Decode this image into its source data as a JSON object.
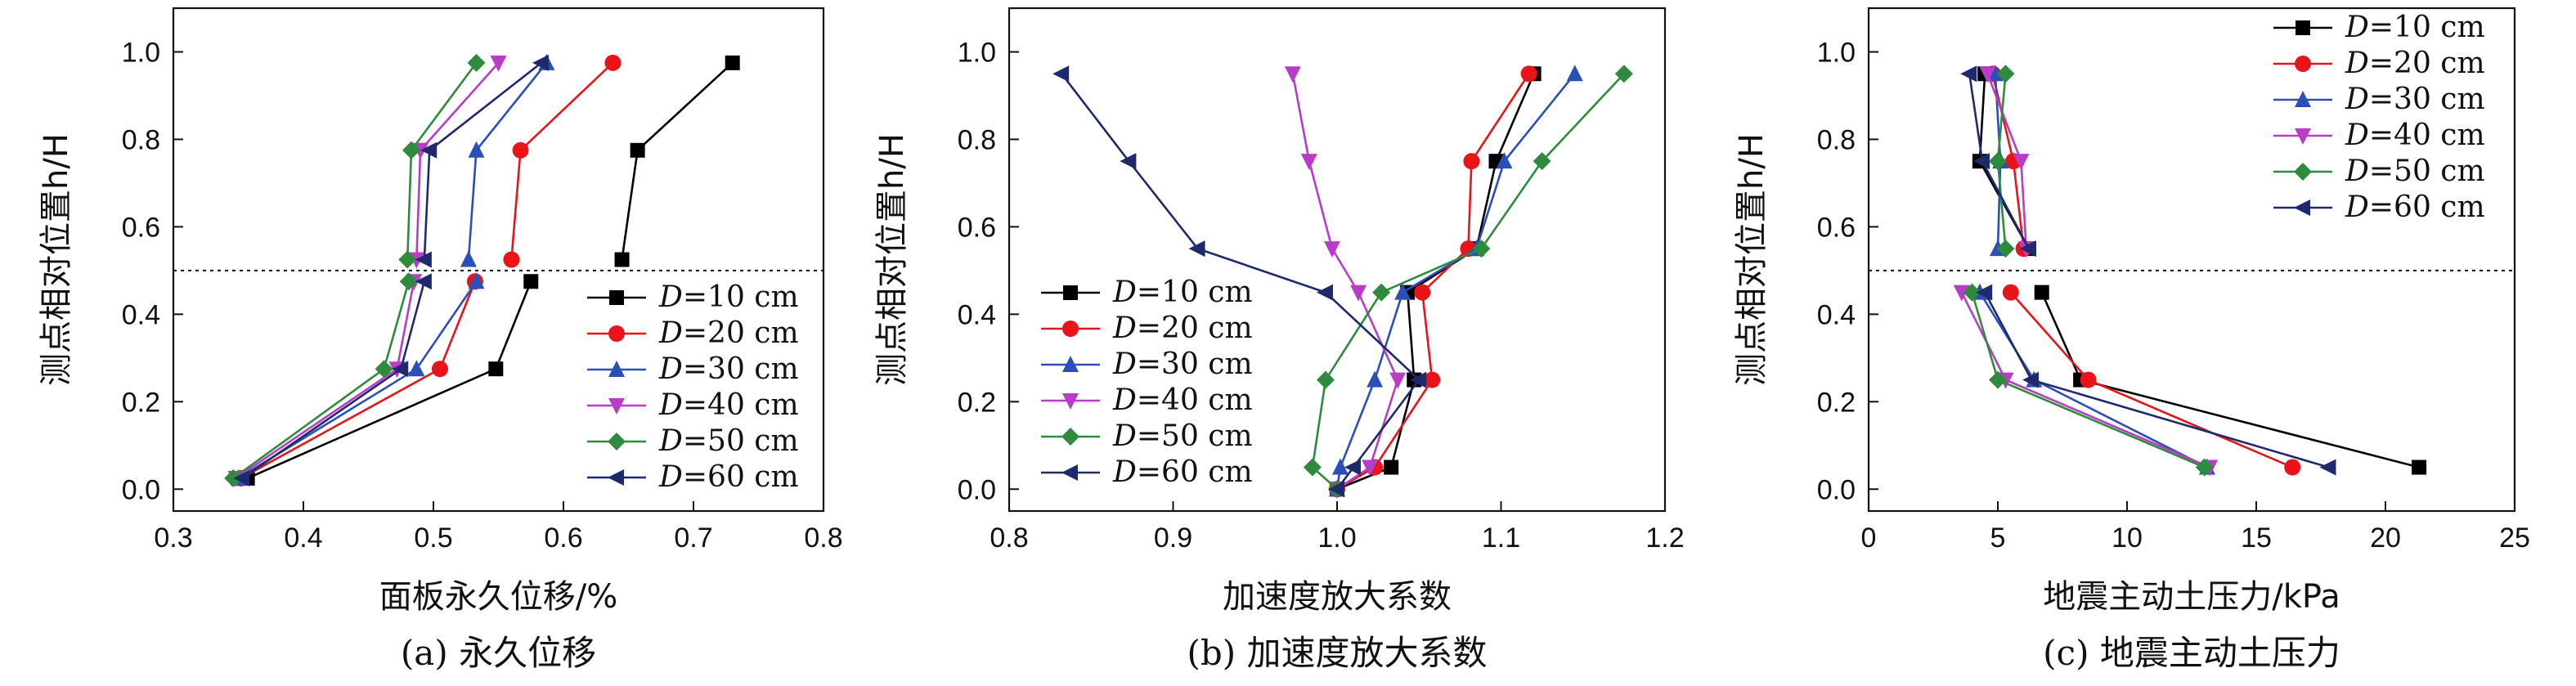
{
  "series_meta": [
    {
      "name": "D=10 cm",
      "color": "#000000",
      "marker": "square"
    },
    {
      "name": "D=20 cm",
      "color": "#e8141a",
      "marker": "circle"
    },
    {
      "name": "D=30 cm",
      "color": "#2a4fb8",
      "marker": "triangle-up"
    },
    {
      "name": "D=40 cm",
      "color": "#b83cc8",
      "marker": "triangle-down"
    },
    {
      "name": "D=50 cm",
      "color": "#2e8b3e",
      "marker": "diamond"
    },
    {
      "name": "D=60 cm",
      "color": "#1f2a6e",
      "marker": "triangle-left"
    }
  ],
  "chart_data": [
    {
      "type": "line",
      "caption": "(a) 永久位移",
      "xlabel": "面板永久位移/%",
      "ylabel": "测点相对位置h/H",
      "xlim": [
        0.3,
        0.8
      ],
      "ylim": [
        -0.05,
        1.1
      ],
      "xticks": [
        "0.3",
        "0.4",
        "0.5",
        "0.6",
        "0.7",
        "0.8"
      ],
      "yticks": [
        "0.0",
        "0.2",
        "0.4",
        "0.6",
        "0.8",
        "1.0"
      ],
      "reference_line_y": 0.5,
      "legend_position": "lower-right",
      "series": [
        {
          "name": "D=10 cm",
          "lower": [
            [
              0.357,
              0.025
            ],
            [
              0.548,
              0.275
            ],
            [
              0.575,
              0.475
            ]
          ],
          "upper": [
            [
              0.645,
              0.525
            ],
            [
              0.657,
              0.775
            ],
            [
              0.73,
              0.975
            ]
          ]
        },
        {
          "name": "D=20 cm",
          "lower": [
            [
              0.352,
              0.025
            ],
            [
              0.505,
              0.275
            ],
            [
              0.532,
              0.475
            ]
          ],
          "upper": [
            [
              0.56,
              0.525
            ],
            [
              0.567,
              0.775
            ],
            [
              0.638,
              0.975
            ]
          ]
        },
        {
          "name": "D=30 cm",
          "lower": [
            [
              0.35,
              0.025
            ],
            [
              0.487,
              0.275
            ],
            [
              0.533,
              0.475
            ]
          ],
          "upper": [
            [
              0.527,
              0.525
            ],
            [
              0.533,
              0.775
            ],
            [
              0.587,
              0.975
            ]
          ]
        },
        {
          "name": "D=40 cm",
          "lower": [
            [
              0.348,
              0.025
            ],
            [
              0.472,
              0.275
            ],
            [
              0.485,
              0.475
            ]
          ],
          "upper": [
            [
              0.487,
              0.525
            ],
            [
              0.49,
              0.775
            ],
            [
              0.55,
              0.975
            ]
          ]
        },
        {
          "name": "D=50 cm",
          "lower": [
            [
              0.346,
              0.025
            ],
            [
              0.462,
              0.275
            ],
            [
              0.481,
              0.475
            ]
          ],
          "upper": [
            [
              0.48,
              0.525
            ],
            [
              0.483,
              0.775
            ],
            [
              0.533,
              0.975
            ]
          ]
        },
        {
          "name": "D=60 cm",
          "lower": [
            [
              0.353,
              0.025
            ],
            [
              0.475,
              0.275
            ],
            [
              0.493,
              0.475
            ]
          ],
          "upper": [
            [
              0.493,
              0.525
            ],
            [
              0.497,
              0.775
            ],
            [
              0.583,
              0.975
            ]
          ]
        }
      ]
    },
    {
      "type": "line",
      "caption": "(b) 加速度放大系数",
      "xlabel": "加速度放大系数",
      "ylabel": "测点相对位置h/H",
      "xlim": [
        0.8,
        1.2
      ],
      "ylim": [
        -0.05,
        1.1
      ],
      "xticks": [
        "0.8",
        "0.9",
        "1.0",
        "1.1",
        "1.2"
      ],
      "yticks": [
        "0.0",
        "0.2",
        "0.4",
        "0.6",
        "0.8",
        "1.0"
      ],
      "legend_position": "lower-left",
      "series": [
        {
          "name": "D=10 cm",
          "points": [
            [
              1.0,
              0.0
            ],
            [
              1.033,
              0.05
            ],
            [
              1.047,
              0.25
            ],
            [
              1.043,
              0.45
            ],
            [
              1.085,
              0.55
            ],
            [
              1.097,
              0.75
            ],
            [
              1.12,
              0.95
            ]
          ]
        },
        {
          "name": "D=20 cm",
          "points": [
            [
              1.0,
              0.0
            ],
            [
              1.023,
              0.05
            ],
            [
              1.058,
              0.25
            ],
            [
              1.052,
              0.45
            ],
            [
              1.08,
              0.55
            ],
            [
              1.082,
              0.75
            ],
            [
              1.117,
              0.95
            ]
          ]
        },
        {
          "name": "D=30 cm",
          "points": [
            [
              1.0,
              0.0
            ],
            [
              1.002,
              0.05
            ],
            [
              1.023,
              0.25
            ],
            [
              1.04,
              0.45
            ],
            [
              1.085,
              0.55
            ],
            [
              1.102,
              0.75
            ],
            [
              1.145,
              0.95
            ]
          ]
        },
        {
          "name": "D=40 cm",
          "points": [
            [
              1.0,
              0.0
            ],
            [
              1.02,
              0.05
            ],
            [
              1.037,
              0.25
            ],
            [
              1.013,
              0.45
            ],
            [
              0.997,
              0.55
            ],
            [
              0.983,
              0.75
            ],
            [
              0.973,
              0.95
            ]
          ]
        },
        {
          "name": "D=50 cm",
          "points": [
            [
              1.0,
              0.0
            ],
            [
              0.985,
              0.05
            ],
            [
              0.993,
              0.25
            ],
            [
              1.027,
              0.45
            ],
            [
              1.088,
              0.55
            ],
            [
              1.125,
              0.75
            ],
            [
              1.175,
              0.95
            ]
          ]
        },
        {
          "name": "D=60 cm",
          "points": [
            [
              1.0,
              0.0
            ],
            [
              1.01,
              0.05
            ],
            [
              1.05,
              0.25
            ],
            [
              0.993,
              0.45
            ],
            [
              0.915,
              0.55
            ],
            [
              0.873,
              0.75
            ],
            [
              0.832,
              0.95
            ]
          ]
        }
      ]
    },
    {
      "type": "line",
      "caption": "(c) 地震主动土压力",
      "xlabel": "地震主动土压力/kPa",
      "ylabel": "测点相对位置h/H",
      "xlim": [
        0,
        25
      ],
      "ylim": [
        -0.05,
        1.1
      ],
      "xticks": [
        "0",
        "5",
        "10",
        "15",
        "20",
        "25"
      ],
      "yticks": [
        "0.0",
        "0.2",
        "0.4",
        "0.6",
        "0.8",
        "1.0"
      ],
      "reference_line_y": 0.5,
      "legend_position": "top-right",
      "series": [
        {
          "name": "D=10 cm",
          "lower": [
            [
              21.3,
              0.05
            ],
            [
              8.2,
              0.25
            ],
            [
              6.7,
              0.45
            ]
          ],
          "upper": [
            [
              6.2,
              0.55
            ],
            [
              4.3,
              0.75
            ],
            [
              4.5,
              0.95
            ]
          ]
        },
        {
          "name": "D=20 cm",
          "lower": [
            [
              16.4,
              0.05
            ],
            [
              8.5,
              0.25
            ],
            [
              5.5,
              0.45
            ]
          ],
          "upper": [
            [
              6.0,
              0.55
            ],
            [
              5.6,
              0.75
            ],
            [
              4.8,
              0.95
            ]
          ]
        },
        {
          "name": "D=30 cm",
          "lower": [
            [
              13.1,
              0.05
            ],
            [
              6.4,
              0.25
            ],
            [
              4.3,
              0.45
            ]
          ],
          "upper": [
            [
              5.0,
              0.55
            ],
            [
              5.1,
              0.75
            ],
            [
              4.9,
              0.95
            ]
          ]
        },
        {
          "name": "D=40 cm",
          "lower": [
            [
              13.2,
              0.05
            ],
            [
              5.3,
              0.25
            ],
            [
              3.6,
              0.45
            ]
          ],
          "upper": [
            [
              6.1,
              0.55
            ],
            [
              5.9,
              0.75
            ],
            [
              4.6,
              0.95
            ]
          ]
        },
        {
          "name": "D=50 cm",
          "lower": [
            [
              13.0,
              0.05
            ],
            [
              5.0,
              0.25
            ],
            [
              4.0,
              0.45
            ]
          ],
          "upper": [
            [
              5.3,
              0.55
            ],
            [
              5.0,
              0.75
            ],
            [
              5.3,
              0.95
            ]
          ]
        },
        {
          "name": "D=60 cm",
          "lower": [
            [
              17.8,
              0.05
            ],
            [
              6.3,
              0.25
            ],
            [
              4.5,
              0.45
            ]
          ],
          "upper": [
            [
              6.2,
              0.55
            ],
            [
              4.4,
              0.75
            ],
            [
              3.9,
              0.95
            ]
          ]
        }
      ]
    }
  ]
}
